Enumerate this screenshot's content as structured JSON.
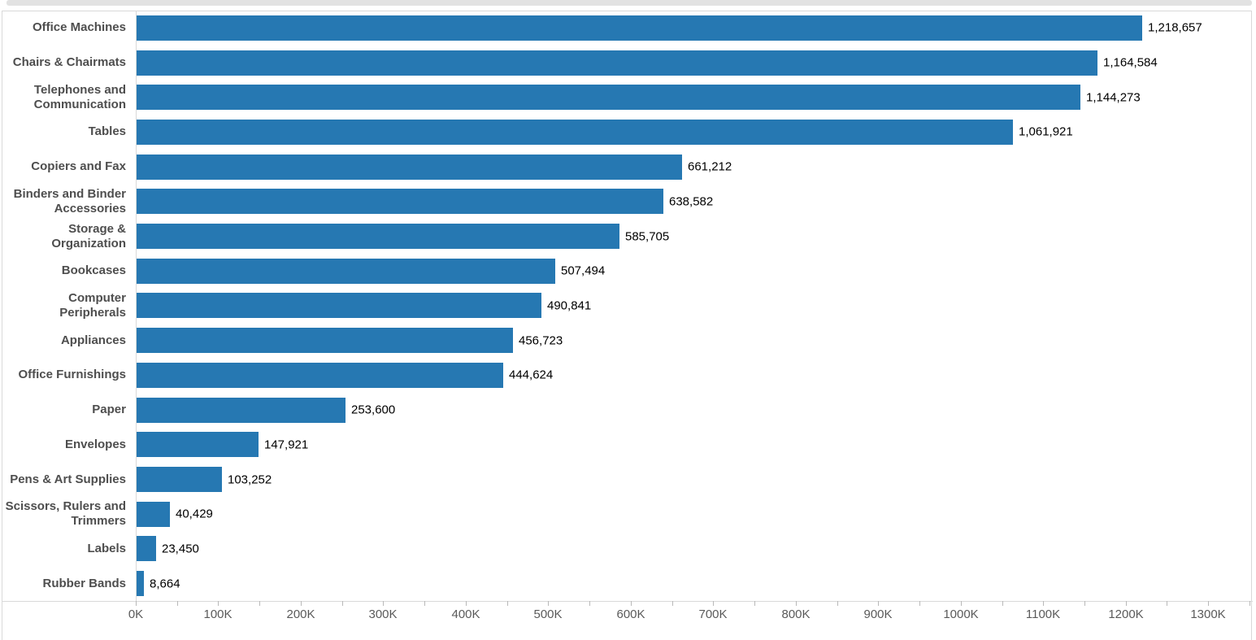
{
  "chart_data": {
    "type": "bar",
    "orientation": "horizontal",
    "title": "",
    "xlabel": "",
    "ylabel": "",
    "grid": false,
    "legend": "none",
    "categories": [
      "Office Machines",
      "Chairs & Chairmats",
      "Telephones and Communication",
      "Tables",
      "Copiers and Fax",
      "Binders and Binder Accessories",
      "Storage & Organization",
      "Bookcases",
      "Computer Peripherals",
      "Appliances",
      "Office Furnishings",
      "Paper",
      "Envelopes",
      "Pens & Art Supplies",
      "Scissors, Rulers and Trimmers",
      "Labels",
      "Rubber Bands"
    ],
    "values": [
      1218657,
      1164584,
      1144273,
      1061921,
      661212,
      638582,
      585705,
      507494,
      490841,
      456723,
      444624,
      253600,
      147921,
      103252,
      40429,
      23450,
      8664
    ],
    "value_labels": [
      "1,218,657",
      "1,164,584",
      "1,144,273",
      "1,061,921",
      "661,212",
      "638,582",
      "585,705",
      "507,494",
      "490,841",
      "456,723",
      "444,624",
      "253,600",
      "147,921",
      "103,252",
      "40,429",
      "23,450",
      "8,664"
    ],
    "x_axis": {
      "min": 0,
      "max": 1354000,
      "major_tick_step": 100000,
      "minor_tick_step": 50000,
      "major_tick_labels": [
        "0K",
        "100K",
        "200K",
        "300K",
        "400K",
        "500K",
        "600K",
        "700K",
        "800K",
        "900K",
        "1000K",
        "1100K",
        "1200K",
        "1300K"
      ]
    }
  },
  "colors": {
    "bar": "#2678b2",
    "category_label": "#4e4e4e",
    "value_label": "#000000",
    "axis_label": "#5a5a5a",
    "border": "#d9d9d9",
    "tick": "#b9b9b9",
    "scrollbar": "#e2e2e2"
  }
}
